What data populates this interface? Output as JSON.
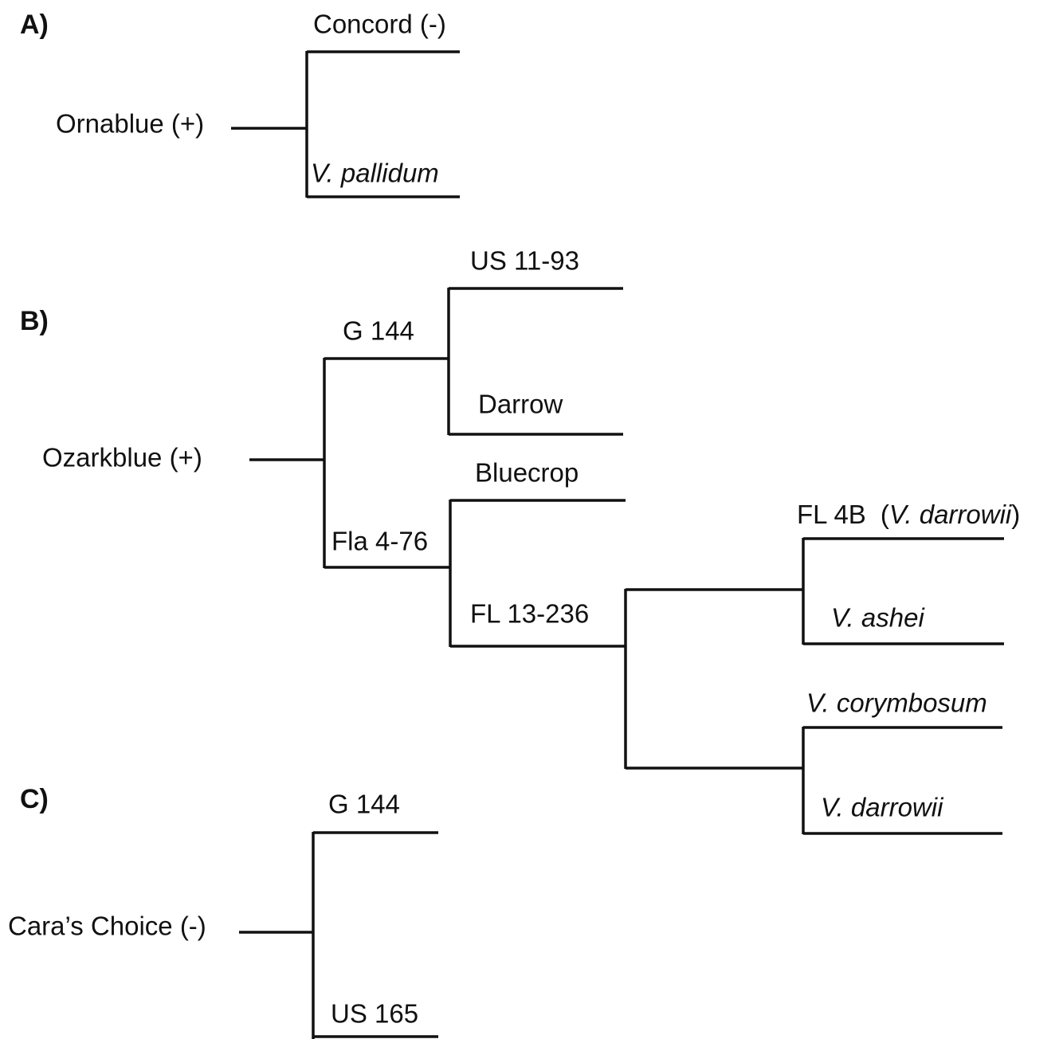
{
  "panels": [
    {
      "label": "A)",
      "root": "Ornablue (+)",
      "parents": [
        "Concord (-)",
        "V. pallidum"
      ]
    },
    {
      "label": "B)",
      "root": "Ozarkblue (+)",
      "nodes": {
        "g144": "G 144",
        "us1193": "US 11-93",
        "darrow": "Darrow",
        "fla476": "Fla 4-76",
        "bluecrop": "Bluecrop",
        "fl13236": "FL 13-236",
        "fl4b": [
          "FL 4B",
          "(",
          "V. darrowii",
          ")"
        ],
        "ashei": "V. ashei",
        "corymbosum": "V. corymbosum",
        "darrowii": "V. darrowii"
      }
    },
    {
      "label": "C)",
      "root": "Cara’s Choice (-)",
      "parents": [
        "G 144",
        "US 165"
      ]
    }
  ]
}
